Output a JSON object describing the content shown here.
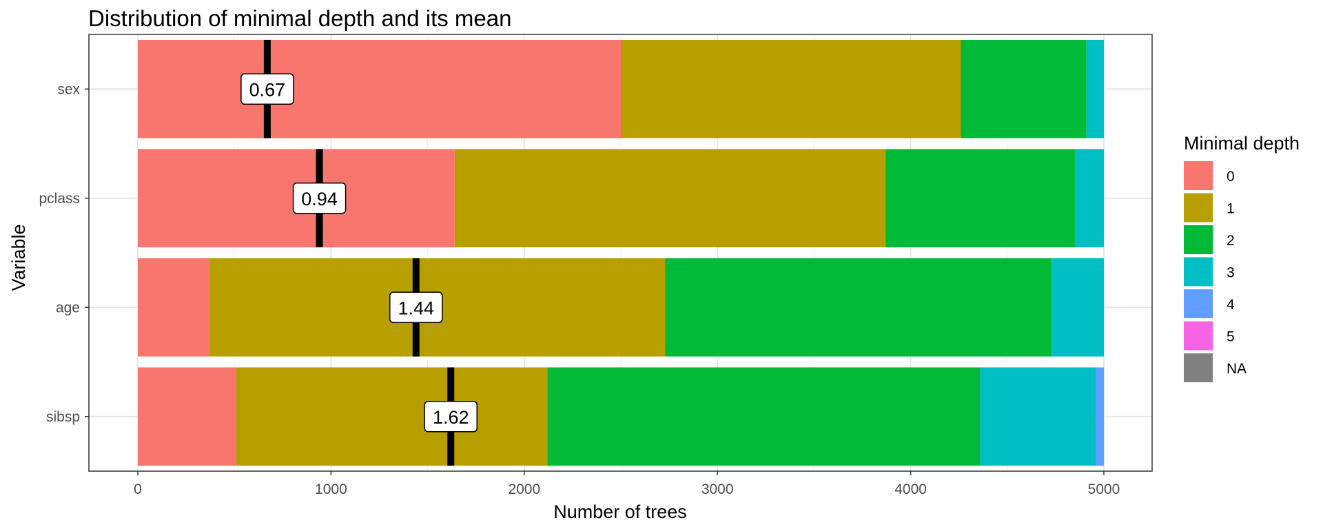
{
  "chart_data": {
    "type": "bar",
    "orientation": "horizontal",
    "stacked": true,
    "title": "Distribution of minimal depth and its mean",
    "xlabel": "Number of trees",
    "ylabel": "Variable",
    "xlim": [
      -250,
      5250
    ],
    "xticks": [
      0,
      1000,
      2000,
      3000,
      4000,
      5000
    ],
    "xtick_labels": [
      "0",
      "1000",
      "2000",
      "3000",
      "4000",
      "5000"
    ],
    "grid": true,
    "legend_title": "Minimal depth",
    "legend_position": "right",
    "categories": [
      "sex",
      "pclass",
      "age",
      "sibsp"
    ],
    "series": [
      {
        "name": "0",
        "color": "#F8766D",
        "values": [
          2500,
          1640,
          370,
          510
        ]
      },
      {
        "name": "1",
        "color": "#B79F00",
        "values": [
          1760,
          2230,
          2360,
          1610
        ]
      },
      {
        "name": "2",
        "color": "#00BA38",
        "values": [
          650,
          980,
          2000,
          2240
        ]
      },
      {
        "name": "3",
        "color": "#00BFC4",
        "values": [
          90,
          150,
          270,
          600
        ]
      },
      {
        "name": "4",
        "color": "#619CFF",
        "values": [
          0,
          0,
          0,
          40
        ]
      },
      {
        "name": "5",
        "color": "#F564E3",
        "values": [
          0,
          0,
          0,
          0
        ]
      },
      {
        "name": "NA",
        "color": "#808080",
        "values": [
          0,
          0,
          0,
          0
        ]
      }
    ],
    "means": [
      {
        "variable": "sex",
        "value": 0.67,
        "label": "0.67"
      },
      {
        "variable": "pclass",
        "value": 0.94,
        "label": "0.94"
      },
      {
        "variable": "age",
        "value": 1.44,
        "label": "1.44"
      },
      {
        "variable": "sibsp",
        "value": 1.62,
        "label": "1.62"
      }
    ]
  }
}
